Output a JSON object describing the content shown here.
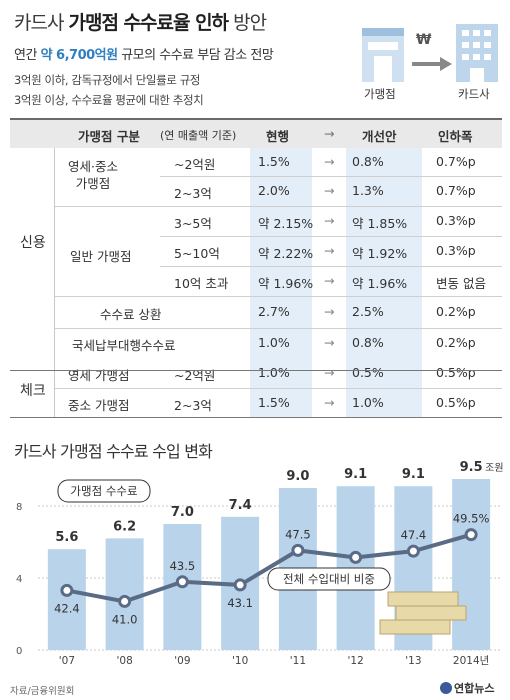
{
  "header": {
    "title_a": "카드사 ",
    "title_b": "가맹점 수수료율 인하",
    "title_c": " 방안",
    "subtitle_a": "연간 ",
    "subtitle_hl": "약 6,700억원",
    "subtitle_b": " 규모의 수수료 부담 감소 전망",
    "note1": "3억원 이하, 감독규정에서 단일률로 규정",
    "note2": "3억원 이상, 수수료율 평균에 대한 추정치",
    "merchant_label": "가맹점",
    "card_label": "카드사",
    "won_symbol": "₩"
  },
  "table": {
    "headers": [
      "가맹점 구분",
      "(연 매출액 기준)",
      "현행",
      "→",
      "개선안",
      "인하폭"
    ],
    "groups": [
      "신용",
      "체크"
    ],
    "sub_groups": [
      "영세·중소\n가맹점",
      "일반 가맹점"
    ],
    "rows": [
      {
        "cat": "",
        "range": "~2억원",
        "cur": "1.5%",
        "new": "0.8%",
        "cut": "0.7%p"
      },
      {
        "cat": "",
        "range": "2~3억",
        "cur": "2.0%",
        "new": "1.3%",
        "cut": "0.7%p"
      },
      {
        "cat": "",
        "range": "3~5억",
        "cur": "약 2.15%",
        "new": "약 1.85%",
        "cut": "0.3%p"
      },
      {
        "cat": "",
        "range": "5~10억",
        "cur": "약 2.22%",
        "new": "약 1.92%",
        "cut": "0.3%p"
      },
      {
        "cat": "",
        "range": "10억 초과",
        "cur": "약 1.96%",
        "new": "약 1.96%",
        "cut": "변동 없음"
      },
      {
        "cat": "수수료 상환",
        "range": "",
        "cur": "2.7%",
        "new": "2.5%",
        "cut": "0.2%p"
      },
      {
        "cat": "국세납부대행수수료",
        "range": "",
        "cur": "1.0%",
        "new": "0.8%",
        "cut": "0.2%p"
      },
      {
        "cat": "영세 가맹점",
        "range": "~2억원",
        "cur": "1.0%",
        "new": "0.5%",
        "cut": "0.5%p"
      },
      {
        "cat": "중소 가맹점",
        "range": "2~3억",
        "cur": "1.5%",
        "new": "1.0%",
        "cut": "0.5%p"
      }
    ]
  },
  "chart_data": {
    "type": "bar",
    "title": "카드사 가맹점 수수료 수입 변화",
    "categories": [
      "'07",
      "'08",
      "'09",
      "'10",
      "'11",
      "'12",
      "'13",
      "2014년"
    ],
    "series": [
      {
        "name": "가맹점 수수료",
        "values": [
          5.6,
          6.2,
          7.0,
          7.4,
          9.0,
          9.1,
          9.1,
          9.5
        ],
        "labels": [
          "5.6",
          "6.2",
          "7.0",
          "7.4",
          "9.0",
          "9.1",
          "9.1",
          "9.5"
        ],
        "unit": "조원",
        "color": "#b9d3ea"
      },
      {
        "name": "전체 수입대비 비중",
        "values": [
          42.4,
          41.0,
          43.5,
          43.1,
          47.5,
          46.6,
          47.4,
          49.5
        ],
        "labels": [
          "42.4",
          "41.0",
          "43.5",
          "43.1",
          "47.5",
          "46.6",
          "47.4",
          "49.5%"
        ],
        "color": "#5a6b86"
      }
    ],
    "yticks": [
      "8",
      "4",
      "0"
    ],
    "ylim": [
      0,
      10
    ],
    "grid": true
  },
  "footer": {
    "source": "자료/금융위원회",
    "logo": "연합뉴스"
  }
}
